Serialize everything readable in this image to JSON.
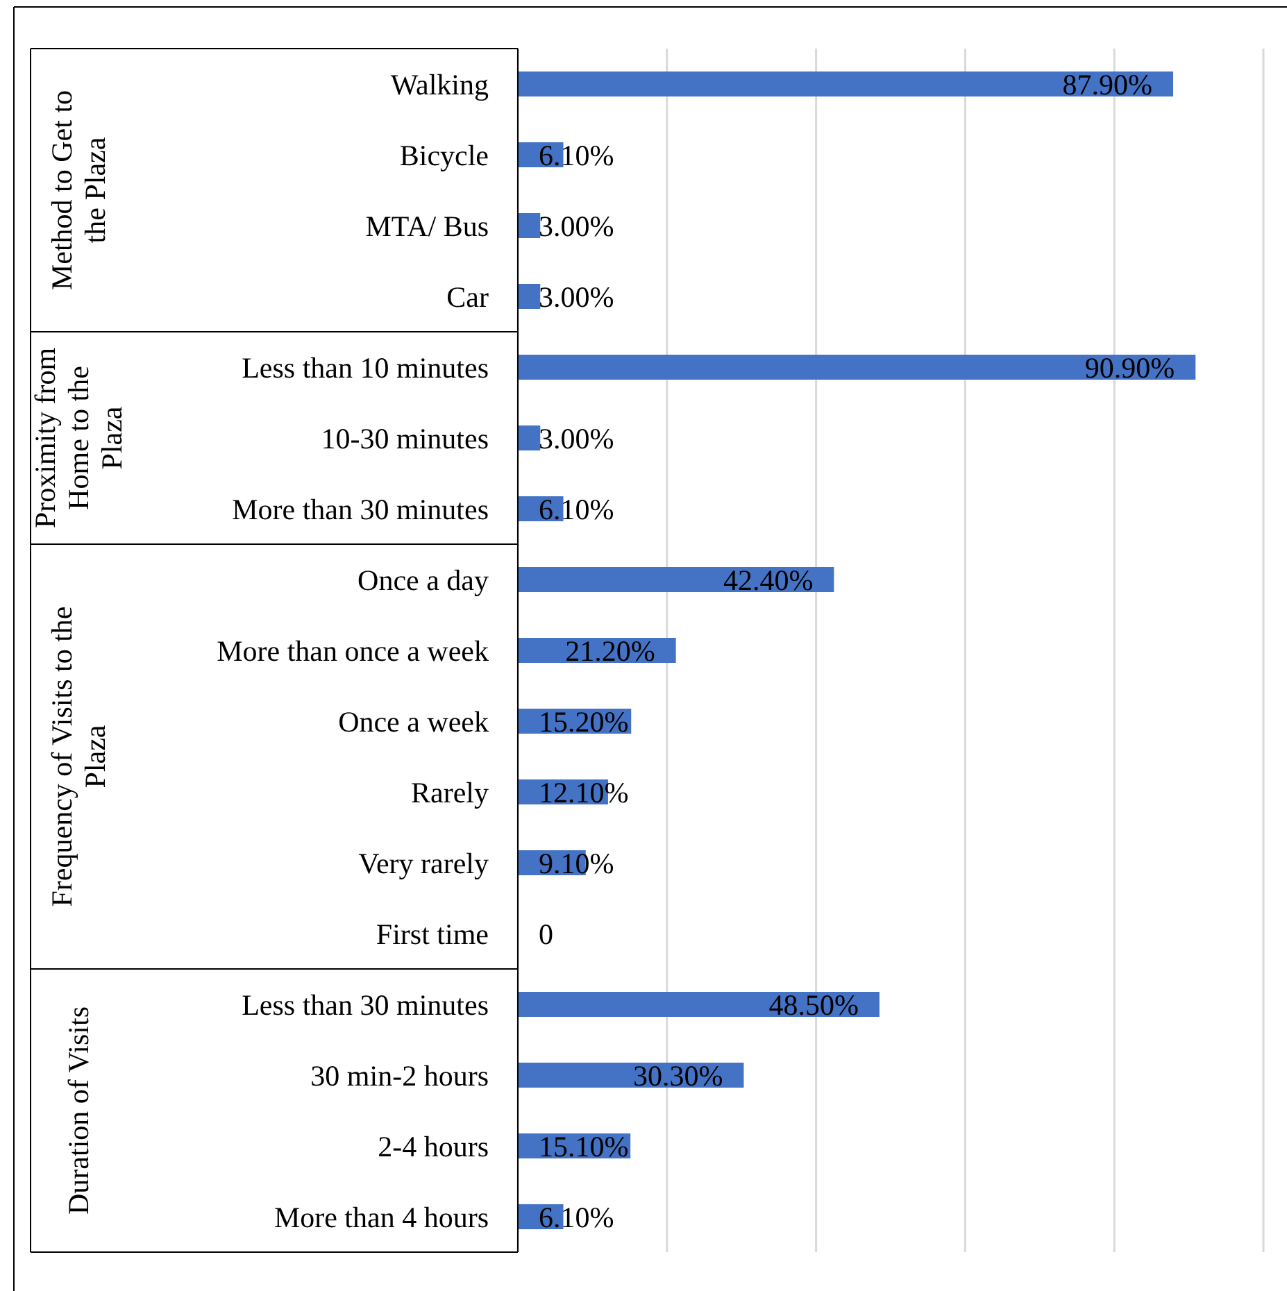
{
  "chart_data": [
    {
      "type": "bar",
      "orientation": "horizontal",
      "ylabel": "Method to Get to the Plaza",
      "categories": [
        "Walking",
        "Bicycle",
        "MTA/ Bus",
        "Car"
      ],
      "values": [
        87.9,
        6.1,
        3.0,
        3.0
      ],
      "value_labels": [
        "87.90%",
        "6.10%",
        "3.00%",
        "3.00%"
      ],
      "color": "#4472c4",
      "xlim": [
        0,
        100
      ],
      "xticks": [
        {
          "value": 0,
          "label": null
        },
        {
          "value": 20,
          "label": null
        },
        {
          "value": 40,
          "label": null
        },
        {
          "value": 60,
          "label": null
        },
        {
          "value": 80,
          "label": null
        },
        {
          "value": 100,
          "label": null
        }
      ],
      "grid": "x",
      "tick_labels": "y"
    },
    {
      "type": "bar",
      "orientation": "horizontal",
      "ylabel": "Proximity from Home to the Plaza",
      "categories": [
        "Less than 10 minutes",
        "10-30 minutes",
        "More than 30 minutes"
      ],
      "values": [
        90.9,
        3.0,
        6.1
      ],
      "value_labels": [
        "90.90%",
        "3.00%",
        "6.10%"
      ],
      "color": "#4472c4",
      "xlim": [
        0,
        100
      ],
      "xticks": [
        {
          "value": 0,
          "label": null
        },
        {
          "value": 20,
          "label": null
        },
        {
          "value": 40,
          "label": null
        },
        {
          "value": 60,
          "label": null
        },
        {
          "value": 80,
          "label": null
        },
        {
          "value": 100,
          "label": null
        }
      ],
      "grid": "x",
      "tick_labels": "y"
    },
    {
      "type": "bar",
      "orientation": "horizontal",
      "ylabel": "Frequency of Visits to the Plaza",
      "categories": [
        "Once a day",
        "More than once a week",
        "Once a week",
        "Rarely",
        "Very rarely",
        "First time"
      ],
      "values": [
        42.4,
        21.2,
        15.2,
        12.1,
        9.1,
        0
      ],
      "value_labels": [
        "42.40%",
        "21.20%",
        "15.20%",
        "12.10%",
        "9.10%",
        "0"
      ],
      "color": "#4472c4",
      "xlim": [
        0,
        100
      ],
      "xticks": [
        {
          "value": 0,
          "label": null
        },
        {
          "value": 20,
          "label": null
        },
        {
          "value": 40,
          "label": null
        },
        {
          "value": 60,
          "label": null
        },
        {
          "value": 80,
          "label": null
        },
        {
          "value": 100,
          "label": null
        }
      ],
      "grid": "x",
      "tick_labels": "y"
    },
    {
      "type": "bar",
      "orientation": "horizontal",
      "ylabel": "Duration of Visits",
      "categories": [
        "Less than 30 minutes",
        "30 min-2 hours",
        "2-4 hours",
        "More than 4 hours"
      ],
      "values": [
        48.5,
        30.3,
        15.1,
        6.1
      ],
      "value_labels": [
        "48.50%",
        "30.30%",
        "15.10%",
        "6.10%"
      ],
      "color": "#4472c4",
      "xlim": [
        0,
        100
      ],
      "xticks": [
        {
          "value": 0,
          "label": null
        },
        {
          "value": 20,
          "label": null
        },
        {
          "value": 40,
          "label": null
        },
        {
          "value": 60,
          "label": null
        },
        {
          "value": 80,
          "label": null
        },
        {
          "value": 100,
          "label": null
        }
      ],
      "grid": "x",
      "tick_labels": "y"
    }
  ]
}
